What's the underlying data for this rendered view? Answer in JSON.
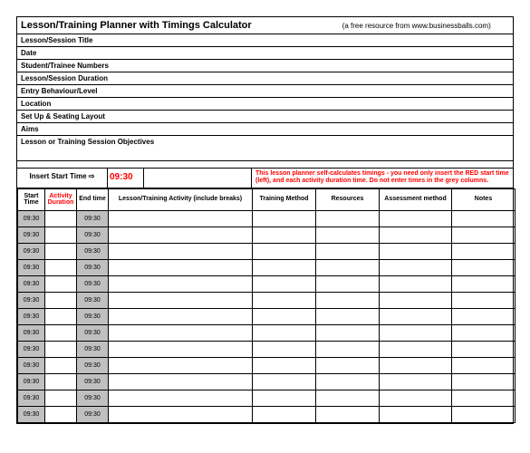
{
  "colors": {
    "red": "#ff0000",
    "grey": "#c0c0c0",
    "border": "#000000",
    "bg": "#ffffff"
  },
  "header": {
    "title": "Lesson/Training Planner with Timings Calculator",
    "subtitle": "(a free resource from www.businessballs.com)"
  },
  "meta": [
    "Lesson/Session Title",
    "Date",
    "Student/Trainee Numbers",
    "Lesson/Session Duration",
    "Entry Behaviour/Level",
    "Location",
    "Set Up & Seating Layout",
    "Aims",
    "Lesson or Training Session Objectives"
  ],
  "start": {
    "label": "Insert Start Time",
    "arrow": "⇨",
    "time": "09:30",
    "note": "This lesson planner self-calculates timings - you need only insert the RED start time (left), and each activity duration time.  Do not enter times in the grey columns."
  },
  "columns": [
    "Start Time",
    "Activity Duration",
    "End time",
    "Lesson/Training Activity (include breaks)",
    "Training Method",
    "Resources",
    "Assessment method",
    "Notes"
  ],
  "rows": [
    {
      "start": "09:30",
      "dur": "",
      "end": "09:30",
      "act": "",
      "meth": "",
      "res": "",
      "ass": "",
      "notes": ""
    },
    {
      "start": "09:30",
      "dur": "",
      "end": "09:30",
      "act": "",
      "meth": "",
      "res": "",
      "ass": "",
      "notes": ""
    },
    {
      "start": "09:30",
      "dur": "",
      "end": "09:30",
      "act": "",
      "meth": "",
      "res": "",
      "ass": "",
      "notes": ""
    },
    {
      "start": "09:30",
      "dur": "",
      "end": "09:30",
      "act": "",
      "meth": "",
      "res": "",
      "ass": "",
      "notes": ""
    },
    {
      "start": "09:30",
      "dur": "",
      "end": "09:30",
      "act": "",
      "meth": "",
      "res": "",
      "ass": "",
      "notes": ""
    },
    {
      "start": "09:30",
      "dur": "",
      "end": "09:30",
      "act": "",
      "meth": "",
      "res": "",
      "ass": "",
      "notes": ""
    },
    {
      "start": "09:30",
      "dur": "",
      "end": "09:30",
      "act": "",
      "meth": "",
      "res": "",
      "ass": "",
      "notes": ""
    },
    {
      "start": "09:30",
      "dur": "",
      "end": "09:30",
      "act": "",
      "meth": "",
      "res": "",
      "ass": "",
      "notes": ""
    },
    {
      "start": "09:30",
      "dur": "",
      "end": "09:30",
      "act": "",
      "meth": "",
      "res": "",
      "ass": "",
      "notes": ""
    },
    {
      "start": "09:30",
      "dur": "",
      "end": "09:30",
      "act": "",
      "meth": "",
      "res": "",
      "ass": "",
      "notes": ""
    },
    {
      "start": "09:30",
      "dur": "",
      "end": "09:30",
      "act": "",
      "meth": "",
      "res": "",
      "ass": "",
      "notes": ""
    },
    {
      "start": "09:30",
      "dur": "",
      "end": "09:30",
      "act": "",
      "meth": "",
      "res": "",
      "ass": "",
      "notes": ""
    },
    {
      "start": "09:30",
      "dur": "",
      "end": "09:30",
      "act": "",
      "meth": "",
      "res": "",
      "ass": "",
      "notes": ""
    }
  ]
}
